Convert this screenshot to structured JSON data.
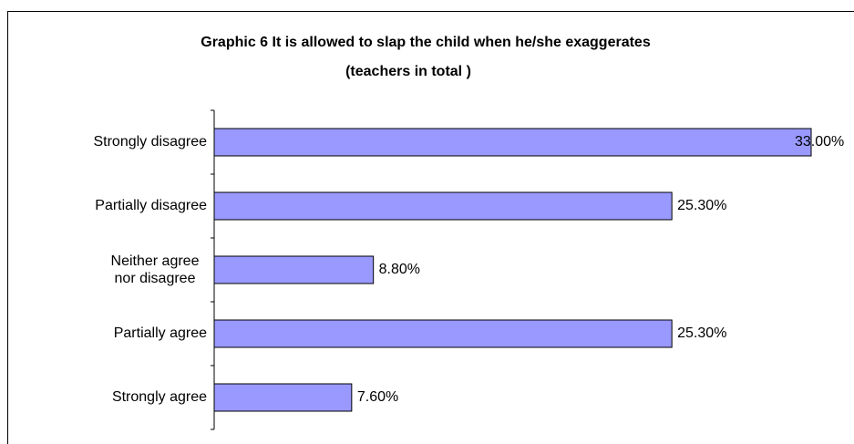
{
  "chart_data": {
    "type": "bar",
    "orientation": "horizontal",
    "title": "Graphic 6  It is allowed to slap the child when he/she exaggerates",
    "subtitle": "(teachers in total )",
    "categories": [
      "Strongly disagree",
      "Partially disagree",
      "Neither agree nor disagree",
      "Partially agree",
      "Strongly agree"
    ],
    "values": [
      33,
      25.3,
      8.8,
      25.3,
      7.6
    ],
    "value_labels": [
      "33.00%",
      "25.30%",
      "8.80%",
      "25.30%",
      "7.60%"
    ],
    "color": "#9999ff"
  }
}
